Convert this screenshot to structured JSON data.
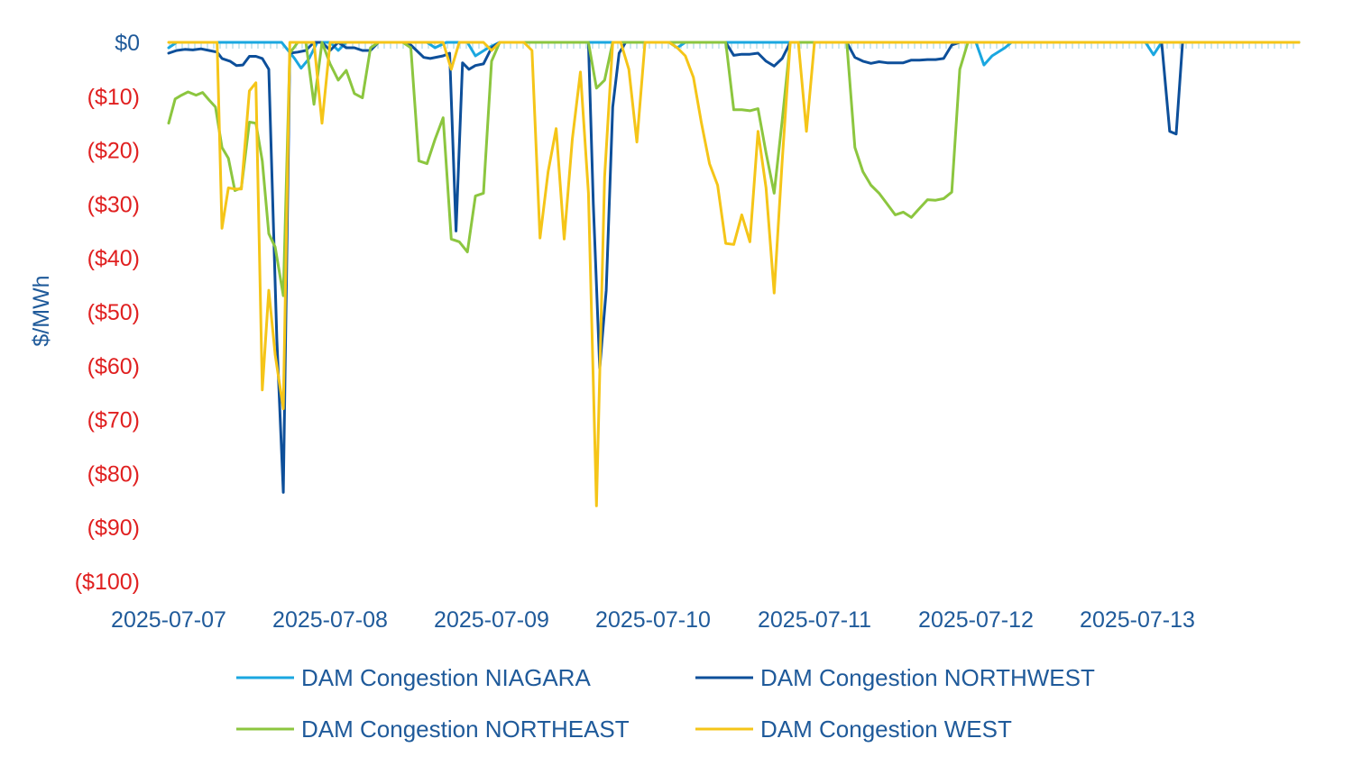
{
  "chart_data": {
    "type": "line",
    "title": "",
    "xlabel": "",
    "ylabel": "$/MWh",
    "ylim": [
      -100,
      0
    ],
    "x_ticks": [
      "2025-07-07",
      "2025-07-08",
      "2025-07-09",
      "2025-07-10",
      "2025-07-11",
      "2025-07-12",
      "2025-07-13"
    ],
    "y_ticks": [
      {
        "value": 0,
        "label": "$0"
      },
      {
        "value": -10,
        "label": "($10)"
      },
      {
        "value": -20,
        "label": "($20)"
      },
      {
        "value": -30,
        "label": "($30)"
      },
      {
        "value": -40,
        "label": "($40)"
      },
      {
        "value": -50,
        "label": "($50)"
      },
      {
        "value": -60,
        "label": "($60)"
      },
      {
        "value": -70,
        "label": "($70)"
      },
      {
        "value": -80,
        "label": "($80)"
      },
      {
        "value": -90,
        "label": "($90)"
      },
      {
        "value": -100,
        "label": "($100)"
      }
    ],
    "colors": {
      "zero_tick": "#1f5a9a",
      "negative_tick": "#e02020",
      "axis_text": "#1f5a9a",
      "zero_line": "#cde8ef"
    },
    "legend_position": "bottom",
    "grid": false,
    "series": [
      {
        "name": "DAM Congestion NIAGARA",
        "color": "#1aa7e0",
        "points": [
          [
            0.0,
            -1.0
          ],
          [
            0.05,
            0.0
          ],
          [
            0.7,
            0.0
          ],
          [
            0.78,
            -3.0
          ],
          [
            0.82,
            -4.8
          ],
          [
            0.87,
            -3.0
          ],
          [
            0.92,
            0.0
          ],
          [
            1.0,
            0.0
          ],
          [
            1.05,
            -1.5
          ],
          [
            1.1,
            0.0
          ],
          [
            1.6,
            0.0
          ],
          [
            1.65,
            -1.0
          ],
          [
            1.72,
            0.0
          ],
          [
            1.85,
            0.0
          ],
          [
            1.9,
            -2.5
          ],
          [
            1.98,
            -1.0
          ],
          [
            2.05,
            0.0
          ],
          [
            3.1,
            0.0
          ],
          [
            3.15,
            -1.0
          ],
          [
            3.2,
            0.0
          ],
          [
            4.85,
            0.0
          ],
          [
            5.0,
            0.0
          ],
          [
            5.05,
            -4.2
          ],
          [
            5.1,
            -2.5
          ],
          [
            5.18,
            -1.0
          ],
          [
            5.22,
            0.0
          ],
          [
            6.05,
            0.0
          ],
          [
            6.1,
            -2.3
          ],
          [
            6.15,
            0.0
          ],
          [
            7.0,
            0.0
          ]
        ]
      },
      {
        "name": "DAM Congestion NORTHWEST",
        "color": "#0d4f9a",
        "points": [
          [
            0.0,
            -2.0
          ],
          [
            0.05,
            -1.5
          ],
          [
            0.1,
            -1.3
          ],
          [
            0.15,
            -1.4
          ],
          [
            0.2,
            -1.2
          ],
          [
            0.25,
            -1.5
          ],
          [
            0.3,
            -1.8
          ],
          [
            0.33,
            -3.0
          ],
          [
            0.38,
            -3.5
          ],
          [
            0.42,
            -4.3
          ],
          [
            0.46,
            -4.2
          ],
          [
            0.5,
            -2.6
          ],
          [
            0.54,
            -2.6
          ],
          [
            0.58,
            -3.0
          ],
          [
            0.62,
            -5.0
          ],
          [
            0.67,
            -55.0
          ],
          [
            0.71,
            -83.5
          ],
          [
            0.75,
            -2.0
          ],
          [
            0.8,
            -1.8
          ],
          [
            0.85,
            -1.5
          ],
          [
            0.9,
            0.0
          ],
          [
            0.95,
            0.0
          ],
          [
            1.0,
            -1.5
          ],
          [
            1.05,
            0.0
          ],
          [
            1.1,
            -1.0
          ],
          [
            1.15,
            -1.0
          ],
          [
            1.2,
            -1.5
          ],
          [
            1.25,
            -1.5
          ],
          [
            1.3,
            0.0
          ],
          [
            1.45,
            0.0
          ],
          [
            1.5,
            -0.5
          ],
          [
            1.58,
            -2.8
          ],
          [
            1.62,
            -3.0
          ],
          [
            1.7,
            -2.5
          ],
          [
            1.74,
            -2.0
          ],
          [
            1.78,
            -35.0
          ],
          [
            1.82,
            -3.8
          ],
          [
            1.86,
            -5.0
          ],
          [
            1.9,
            -4.3
          ],
          [
            1.95,
            -4.0
          ],
          [
            2.0,
            -1.0
          ],
          [
            2.05,
            0.0
          ],
          [
            2.6,
            0.0
          ],
          [
            2.63,
            -30.0
          ],
          [
            2.67,
            -60.5
          ],
          [
            2.71,
            -46.0
          ],
          [
            2.75,
            -12.0
          ],
          [
            2.79,
            -2.0
          ],
          [
            2.83,
            0.0
          ],
          [
            3.45,
            0.0
          ],
          [
            3.5,
            -2.4
          ],
          [
            3.55,
            -2.2
          ],
          [
            3.6,
            -2.2
          ],
          [
            3.65,
            -2.0
          ],
          [
            3.7,
            -3.5
          ],
          [
            3.75,
            -4.4
          ],
          [
            3.8,
            -3.0
          ],
          [
            3.85,
            0.0
          ],
          [
            4.2,
            0.0
          ],
          [
            4.25,
            -2.8
          ],
          [
            4.3,
            -3.5
          ],
          [
            4.35,
            -3.9
          ],
          [
            4.4,
            -3.6
          ],
          [
            4.45,
            -3.8
          ],
          [
            4.5,
            -3.8
          ],
          [
            4.55,
            -3.8
          ],
          [
            4.6,
            -3.3
          ],
          [
            4.65,
            -3.3
          ],
          [
            4.7,
            -3.2
          ],
          [
            4.75,
            -3.2
          ],
          [
            4.8,
            -3.0
          ],
          [
            4.85,
            -0.5
          ],
          [
            4.9,
            0.0
          ],
          [
            6.15,
            0.0
          ],
          [
            6.2,
            -16.5
          ],
          [
            6.24,
            -17.0
          ],
          [
            6.28,
            0.0
          ],
          [
            7.0,
            0.0
          ]
        ]
      },
      {
        "name": "DAM Congestion NORTHEAST",
        "color": "#8cc63f",
        "points": [
          [
            0.0,
            -15.0
          ],
          [
            0.04,
            -10.5
          ],
          [
            0.08,
            -9.8
          ],
          [
            0.12,
            -9.2
          ],
          [
            0.17,
            -9.8
          ],
          [
            0.21,
            -9.3
          ],
          [
            0.25,
            -10.7
          ],
          [
            0.29,
            -12.0
          ],
          [
            0.33,
            -19.5
          ],
          [
            0.37,
            -21.5
          ],
          [
            0.41,
            -27.5
          ],
          [
            0.45,
            -27.0
          ],
          [
            0.5,
            -14.8
          ],
          [
            0.54,
            -15.0
          ],
          [
            0.58,
            -22.0
          ],
          [
            0.62,
            -35.5
          ],
          [
            0.66,
            -38.0
          ],
          [
            0.71,
            -47.0
          ],
          [
            0.75,
            -2.0
          ],
          [
            0.8,
            0.0
          ],
          [
            0.85,
            0.0
          ],
          [
            0.9,
            -11.5
          ],
          [
            0.95,
            0.0
          ],
          [
            1.0,
            -4.0
          ],
          [
            1.05,
            -7.0
          ],
          [
            1.1,
            -5.2
          ],
          [
            1.15,
            -9.5
          ],
          [
            1.2,
            -10.3
          ],
          [
            1.25,
            -1.0
          ],
          [
            1.3,
            0.0
          ],
          [
            1.45,
            0.0
          ],
          [
            1.5,
            -1.0
          ],
          [
            1.55,
            -22.0
          ],
          [
            1.6,
            -22.5
          ],
          [
            1.65,
            -18.0
          ],
          [
            1.7,
            -14.0
          ],
          [
            1.75,
            -36.5
          ],
          [
            1.8,
            -37.0
          ],
          [
            1.85,
            -38.9
          ],
          [
            1.9,
            -28.5
          ],
          [
            1.95,
            -28.0
          ],
          [
            2.0,
            -3.5
          ],
          [
            2.05,
            0.0
          ],
          [
            2.6,
            0.0
          ],
          [
            2.65,
            -8.5
          ],
          [
            2.7,
            -7.0
          ],
          [
            2.75,
            0.0
          ],
          [
            3.45,
            0.0
          ],
          [
            3.5,
            -12.5
          ],
          [
            3.55,
            -12.5
          ],
          [
            3.6,
            -12.7
          ],
          [
            3.65,
            -12.3
          ],
          [
            3.7,
            -20.5
          ],
          [
            3.75,
            -28.0
          ],
          [
            3.8,
            -14.5
          ],
          [
            3.85,
            0.0
          ],
          [
            4.2,
            0.0
          ],
          [
            4.25,
            -19.5
          ],
          [
            4.3,
            -24.0
          ],
          [
            4.35,
            -26.5
          ],
          [
            4.4,
            -28.0
          ],
          [
            4.45,
            -30.0
          ],
          [
            4.5,
            -32.0
          ],
          [
            4.55,
            -31.5
          ],
          [
            4.6,
            -32.5
          ],
          [
            4.65,
            -30.8
          ],
          [
            4.7,
            -29.2
          ],
          [
            4.75,
            -29.3
          ],
          [
            4.8,
            -29.0
          ],
          [
            4.85,
            -27.8
          ],
          [
            4.9,
            -5.0
          ],
          [
            4.95,
            0.0
          ],
          [
            7.0,
            0.0
          ]
        ]
      },
      {
        "name": "DAM Congestion WEST",
        "color": "#f5c518",
        "points": [
          [
            0.0,
            0.0
          ],
          [
            0.3,
            0.0
          ],
          [
            0.33,
            -34.5
          ],
          [
            0.37,
            -27.0
          ],
          [
            0.41,
            -27.2
          ],
          [
            0.45,
            -27.2
          ],
          [
            0.5,
            -9.0
          ],
          [
            0.54,
            -7.5
          ],
          [
            0.58,
            -64.5
          ],
          [
            0.62,
            -46.0
          ],
          [
            0.66,
            -58.0
          ],
          [
            0.71,
            -68.0
          ],
          [
            0.75,
            0.0
          ],
          [
            0.8,
            0.0
          ],
          [
            0.85,
            0.0
          ],
          [
            0.9,
            0.0
          ],
          [
            0.95,
            -15.0
          ],
          [
            1.0,
            0.0
          ],
          [
            1.05,
            0.0
          ],
          [
            1.7,
            0.0
          ],
          [
            1.75,
            -5.0
          ],
          [
            1.8,
            0.0
          ],
          [
            1.95,
            0.0
          ],
          [
            2.0,
            -1.5
          ],
          [
            2.05,
            0.0
          ],
          [
            2.2,
            0.0
          ],
          [
            2.25,
            -1.5
          ],
          [
            2.3,
            -36.3
          ],
          [
            2.35,
            -24.0
          ],
          [
            2.4,
            -16.0
          ],
          [
            2.45,
            -36.5
          ],
          [
            2.5,
            -18.0
          ],
          [
            2.55,
            -5.5
          ],
          [
            2.6,
            -28.0
          ],
          [
            2.65,
            -86.0
          ],
          [
            2.7,
            -25.0
          ],
          [
            2.75,
            0.0
          ],
          [
            2.8,
            0.0
          ],
          [
            2.85,
            -5.0
          ],
          [
            2.9,
            -18.5
          ],
          [
            2.95,
            0.0
          ],
          [
            3.0,
            0.0
          ],
          [
            3.1,
            0.0
          ],
          [
            3.15,
            -1.0
          ],
          [
            3.2,
            -2.5
          ],
          [
            3.25,
            -6.5
          ],
          [
            3.3,
            -15.0
          ],
          [
            3.35,
            -22.5
          ],
          [
            3.4,
            -26.5
          ],
          [
            3.45,
            -37.3
          ],
          [
            3.5,
            -37.5
          ],
          [
            3.55,
            -32.0
          ],
          [
            3.6,
            -37.0
          ],
          [
            3.65,
            -16.5
          ],
          [
            3.7,
            -27.0
          ],
          [
            3.75,
            -46.5
          ],
          [
            3.8,
            -22.0
          ],
          [
            3.85,
            0.0
          ],
          [
            3.9,
            0.0
          ],
          [
            3.95,
            -16.5
          ],
          [
            4.0,
            0.0
          ],
          [
            7.0,
            0.0
          ]
        ]
      }
    ]
  }
}
